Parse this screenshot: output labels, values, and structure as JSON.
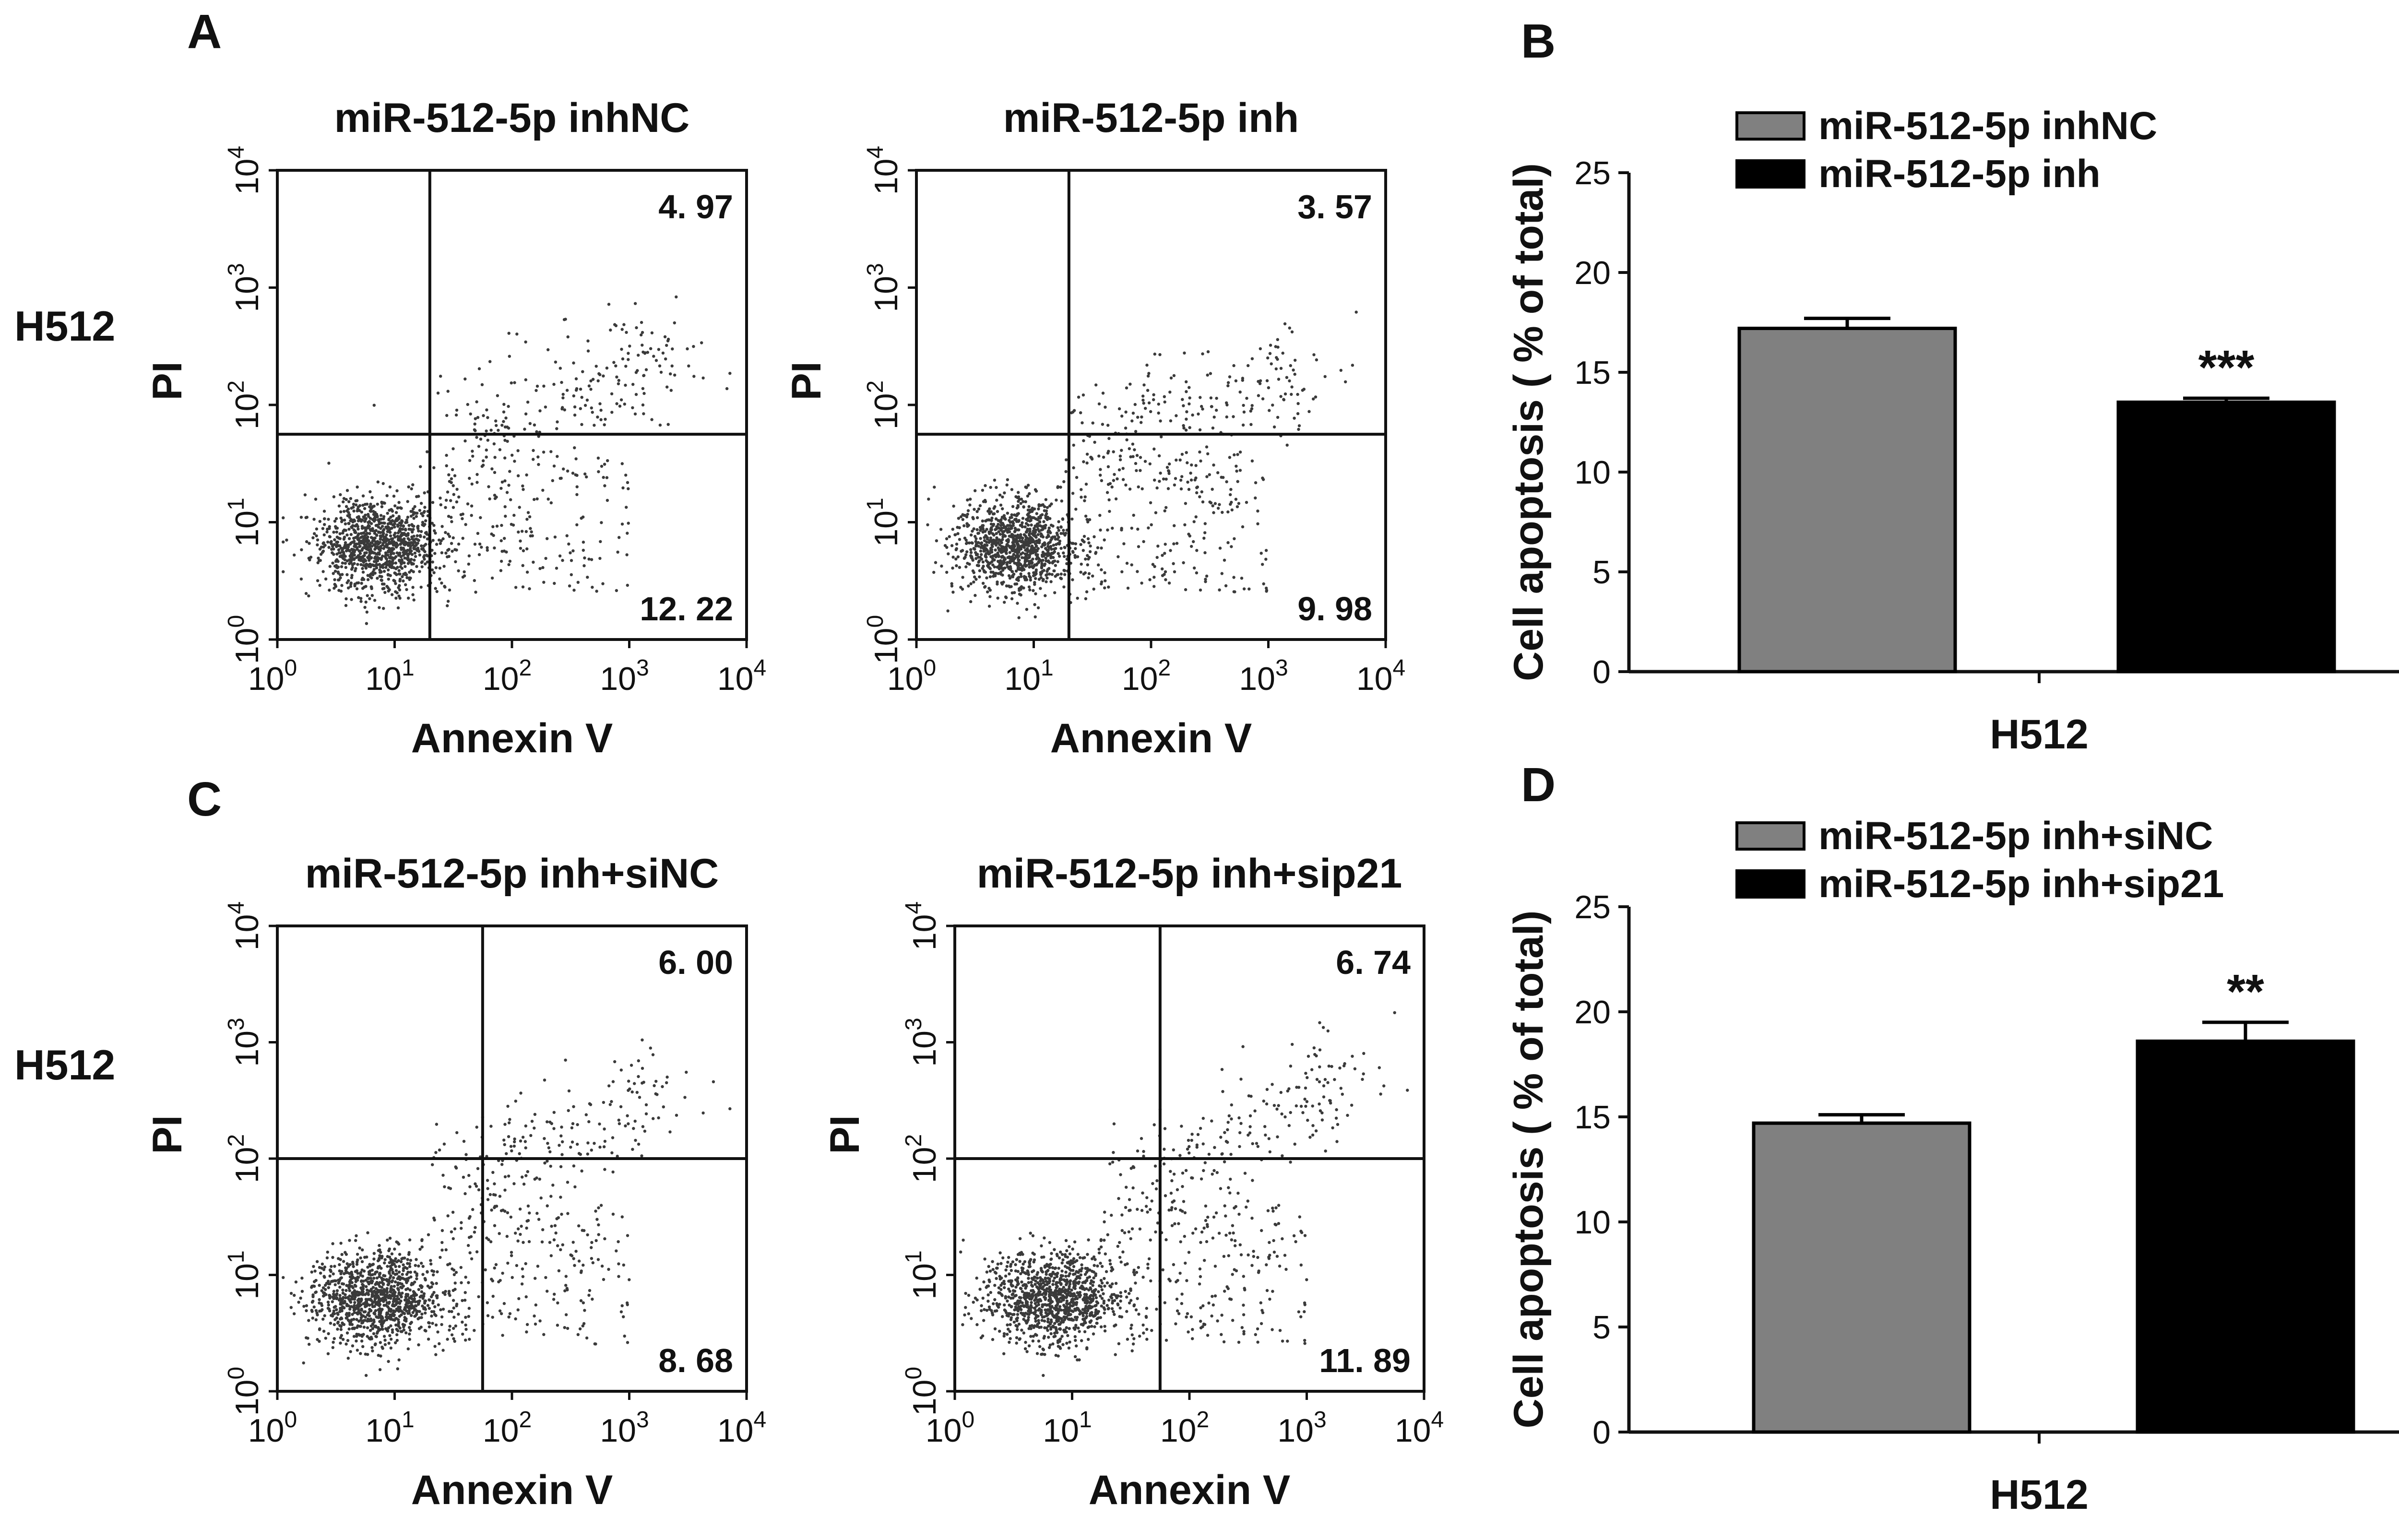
{
  "colors": {
    "dots": "#3a3a3a",
    "gray_bar": "#808080",
    "black_bar": "#000000",
    "axis": "#111111"
  },
  "flow_plots": [
    {
      "id": "A-left",
      "panel_letter": "A",
      "row_label": "H512",
      "title": "miR-512-5p inhNC",
      "x_label": "Annexin V",
      "y_label": "PI",
      "tick_base": "10",
      "tick_exponents": [
        "0",
        "1",
        "2",
        "3",
        "4"
      ],
      "gate_x_log": 1.3,
      "gate_y_log": 1.75,
      "upper_right": "4. 97",
      "lower_right": "12. 22",
      "spread": 0.7
    },
    {
      "id": "A-right",
      "panel_letter": "",
      "row_label": "",
      "title": "miR-512-5p inh",
      "x_label": "Annexin V",
      "y_label": "PI",
      "tick_base": "10",
      "tick_exponents": [
        "0",
        "1",
        "2",
        "3",
        "4"
      ],
      "gate_x_log": 1.3,
      "gate_y_log": 1.75,
      "upper_right": "3. 57",
      "lower_right": "9. 98",
      "spread": 0.55
    },
    {
      "id": "C-left",
      "panel_letter": "C",
      "row_label": "H512",
      "title": "miR-512-5p inh+siNC",
      "x_label": "Annexin V",
      "y_label": "PI",
      "tick_base": "10",
      "tick_exponents": [
        "0",
        "1",
        "2",
        "3",
        "4"
      ],
      "gate_x_log": 1.75,
      "gate_y_log": 2.0,
      "upper_right": "6. 00",
      "lower_right": "8. 68",
      "spread": 0.85
    },
    {
      "id": "C-right",
      "panel_letter": "",
      "row_label": "",
      "title": "miR-512-5p inh+sip21",
      "x_label": "Annexin V",
      "y_label": "PI",
      "tick_base": "10",
      "tick_exponents": [
        "0",
        "1",
        "2",
        "3",
        "4"
      ],
      "gate_x_log": 1.75,
      "gate_y_log": 2.0,
      "upper_right": "6. 74",
      "lower_right": "11. 89",
      "spread": 1.0
    }
  ],
  "chart_data": [
    {
      "type": "bar",
      "panel_letter": "B",
      "title": "",
      "categories": [
        "H512"
      ],
      "series": [
        {
          "name": "miR-512-5p inhNC",
          "values": [
            17.2
          ],
          "error": [
            0.5
          ],
          "color": "#808080"
        },
        {
          "name": "miR-512-5p inh",
          "values": [
            13.5
          ],
          "error": [
            0.2
          ],
          "color": "#000000",
          "significance": "***"
        }
      ],
      "xlabel": "H512",
      "ylabel": "Cell apoptosis ( % of total)",
      "ylim": [
        0,
        25
      ],
      "yticks": [
        "0",
        "5",
        "10",
        "15",
        "20",
        "25"
      ],
      "legend": "top"
    },
    {
      "type": "bar",
      "panel_letter": "D",
      "title": "",
      "categories": [
        "H512"
      ],
      "series": [
        {
          "name": "miR-512-5p inh+siNC",
          "values": [
            14.7
          ],
          "error": [
            0.4
          ],
          "color": "#808080"
        },
        {
          "name": "miR-512-5p inh+sip21",
          "values": [
            18.6
          ],
          "error": [
            0.9
          ],
          "color": "#000000",
          "significance": "**"
        }
      ],
      "xlabel": "H512",
      "ylabel": "Cell apoptosis ( % of total)",
      "ylim": [
        0,
        25
      ],
      "yticks": [
        "0",
        "5",
        "10",
        "15",
        "20",
        "25"
      ],
      "legend": "top"
    }
  ]
}
